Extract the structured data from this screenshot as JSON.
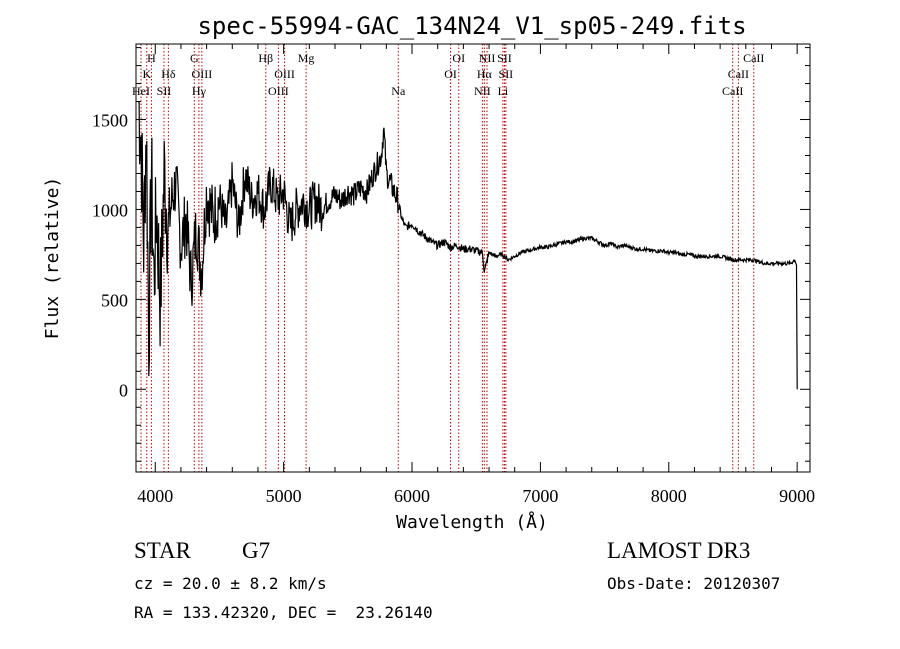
{
  "chart_data": {
    "type": "line",
    "title": "spec-55994-GAC_134N24_V1_sp05-249.fits",
    "xlabel": "Wavelength (Å)",
    "ylabel": "Flux (relative)",
    "xlim": [
      3850,
      9100
    ],
    "ylim": [
      -460,
      1920
    ],
    "x_ticks": [
      4000,
      5000,
      6000,
      7000,
      8000,
      9000
    ],
    "y_ticks": [
      0,
      500,
      1000,
      1500
    ],
    "x_tick_labels": [
      "4000",
      "5000",
      "6000",
      "7000",
      "8000",
      "9000"
    ],
    "y_tick_labels": [
      "0",
      "500",
      "1000",
      "1500"
    ],
    "grid": false,
    "series": [
      {
        "name": "flux",
        "x": [
          3870,
          3890,
          3910,
          3930,
          3950,
          3970,
          3990,
          4010,
          4040,
          4070,
          4100,
          4130,
          4160,
          4200,
          4240,
          4280,
          4320,
          4360,
          4400,
          4450,
          4500,
          4550,
          4600,
          4650,
          4700,
          4750,
          4800,
          4850,
          4900,
          4950,
          5000,
          5050,
          5100,
          5150,
          5200,
          5250,
          5300,
          5350,
          5400,
          5450,
          5500,
          5550,
          5600,
          5650,
          5700,
          5730,
          5760,
          5780,
          5800,
          5830,
          5860,
          5890,
          5920,
          5950,
          6000,
          6050,
          6100,
          6150,
          6200,
          6250,
          6300,
          6350,
          6400,
          6450,
          6500,
          6550,
          6563,
          6600,
          6650,
          6700,
          6750,
          6800,
          6850,
          6900,
          6950,
          7000,
          7050,
          7100,
          7150,
          7200,
          7250,
          7300,
          7350,
          7400,
          7450,
          7500,
          7550,
          7600,
          7650,
          7700,
          7750,
          7800,
          7850,
          7900,
          7950,
          8000,
          8050,
          8100,
          8150,
          8200,
          8250,
          8300,
          8350,
          8400,
          8450,
          8500,
          8550,
          8600,
          8650,
          8700,
          8750,
          8800,
          8850,
          8900,
          8950,
          8980,
          8995,
          9000
        ],
        "y": [
          1600,
          1400,
          800,
          1500,
          300,
          1200,
          600,
          1000,
          500,
          1200,
          900,
          1050,
          1150,
          800,
          950,
          600,
          900,
          650,
          1100,
          950,
          1050,
          900,
          1150,
          900,
          1200,
          1050,
          1100,
          1000,
          1150,
          1050,
          1100,
          900,
          1000,
          1050,
          1000,
          1050,
          1000,
          1050,
          1080,
          1050,
          1100,
          1080,
          1120,
          1100,
          1200,
          1250,
          1300,
          1450,
          1200,
          1150,
          1100,
          1050,
          950,
          900,
          920,
          880,
          850,
          820,
          800,
          820,
          790,
          800,
          780,
          780,
          770,
          760,
          650,
          760,
          740,
          750,
          720,
          740,
          760,
          770,
          780,
          790,
          790,
          800,
          810,
          820,
          820,
          830,
          840,
          840,
          820,
          800,
          810,
          790,
          800,
          790,
          780,
          780,
          770,
          770,
          770,
          760,
          760,
          750,
          750,
          740,
          740,
          740,
          740,
          740,
          730,
          720,
          720,
          720,
          720,
          710,
          700,
          700,
          700,
          700,
          700,
          720,
          690,
          0
        ]
      }
    ],
    "annotations": {
      "text_lines": [
        "STAR    G7",
        "cz = 20.0 ± 8.2 km/s",
        "RA = 133.42320, DEC =  23.26140",
        "LAMOST DR3",
        "Obs-Date: 20120307"
      ]
    },
    "line_markers": [
      {
        "label": "H",
        "wavelength": 3970,
        "row": 0
      },
      {
        "label": "K",
        "wavelength": 3934,
        "row": 1
      },
      {
        "label": "HeI",
        "wavelength": 3889,
        "row": 2
      },
      {
        "label": "Hδ",
        "wavelength": 4102,
        "row": 1
      },
      {
        "label": "SII",
        "wavelength": 4068,
        "row": 2
      },
      {
        "label": "G",
        "wavelength": 4304,
        "row": 0
      },
      {
        "label": "OIII",
        "wavelength": 4363,
        "row": 1
      },
      {
        "label": "Hγ",
        "wavelength": 4340,
        "row": 2
      },
      {
        "label": "Hβ",
        "wavelength": 4861,
        "row": 0
      },
      {
        "label": "OIII",
        "wavelength": 5007,
        "row": 1
      },
      {
        "label": "OIII",
        "wavelength": 4959,
        "row": 2
      },
      {
        "label": "Mg",
        "wavelength": 5175,
        "row": 0
      },
      {
        "label": "Na",
        "wavelength": 5893,
        "row": 2
      },
      {
        "label": "OI",
        "wavelength": 6364,
        "row": 0
      },
      {
        "label": "OI",
        "wavelength": 6300,
        "row": 1
      },
      {
        "label": "NII",
        "wavelength": 6584,
        "row": 0
      },
      {
        "label": "SII",
        "wavelength": 6720,
        "row": 0
      },
      {
        "label": "Hα",
        "wavelength": 6563,
        "row": 1
      },
      {
        "label": "SII",
        "wavelength": 6731,
        "row": 1
      },
      {
        "label": "NII",
        "wavelength": 6548,
        "row": 2
      },
      {
        "label": "Li",
        "wavelength": 6708,
        "row": 2
      },
      {
        "label": "CaII",
        "wavelength": 8662,
        "row": 0
      },
      {
        "label": "CaII",
        "wavelength": 8542,
        "row": 1
      },
      {
        "label": "CaII",
        "wavelength": 8498,
        "row": 2
      }
    ],
    "marker_color": "#c00000"
  },
  "info": {
    "object_class": "STAR",
    "subclass": "G7",
    "cz": "cz = 20.0 ± 8.2 km/s",
    "coords": "RA = 133.42320, DEC =  23.26140",
    "survey": "LAMOST DR3",
    "obs_date": "Obs-Date: 20120307"
  }
}
